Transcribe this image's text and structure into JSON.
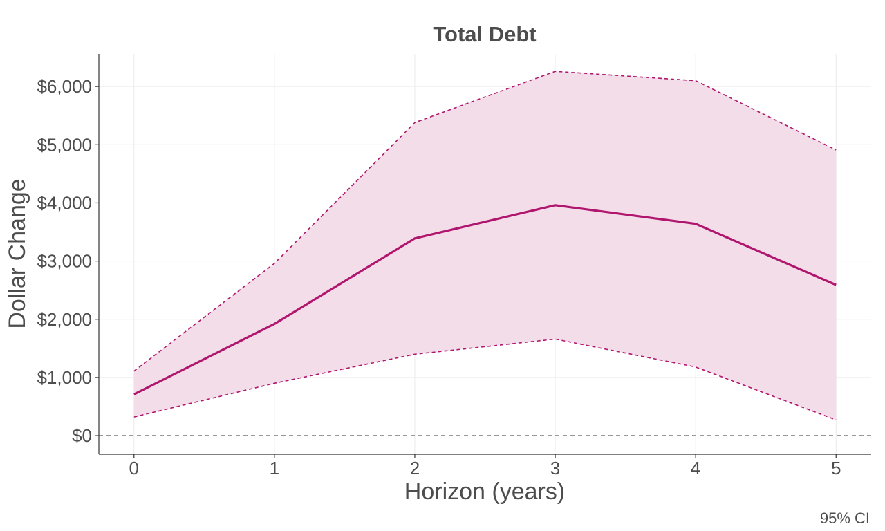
{
  "colors": {
    "accent": "#b0166e",
    "band": "#f3dde8",
    "text": "#4d4d4d",
    "grid": "#ebebeb"
  },
  "chart_data": {
    "type": "line",
    "title": "Total Debt",
    "xlabel": "Horizon (years)",
    "ylabel": "Dollar Change",
    "caption": "95% CI",
    "x": [
      0,
      1,
      2,
      3,
      4,
      5
    ],
    "x_tick_labels": [
      "0",
      "1",
      "2",
      "3",
      "4",
      "5"
    ],
    "y_ticks": [
      0,
      1000,
      2000,
      3000,
      4000,
      5000,
      6000
    ],
    "y_tick_labels": [
      "$0",
      "$1,000",
      "$2,000",
      "$3,000",
      "$4,000",
      "$5,000",
      "$6,000"
    ],
    "xlim": [
      -0.25,
      5.25
    ],
    "ylim": [
      -320,
      6560
    ],
    "grid": true,
    "legend": "none",
    "reference_line": {
      "y": 0,
      "style": "dashed"
    },
    "series": [
      {
        "role": "estimate",
        "style": "solid",
        "values": [
          710,
          1920,
          3390,
          3960,
          3640,
          2590
        ]
      },
      {
        "role": "upper",
        "style": "dashed",
        "values": [
          1110,
          2960,
          5380,
          6260,
          6100,
          4910
        ]
      },
      {
        "role": "lower",
        "style": "dashed",
        "values": [
          320,
          900,
          1400,
          1660,
          1180,
          270
        ]
      }
    ]
  }
}
